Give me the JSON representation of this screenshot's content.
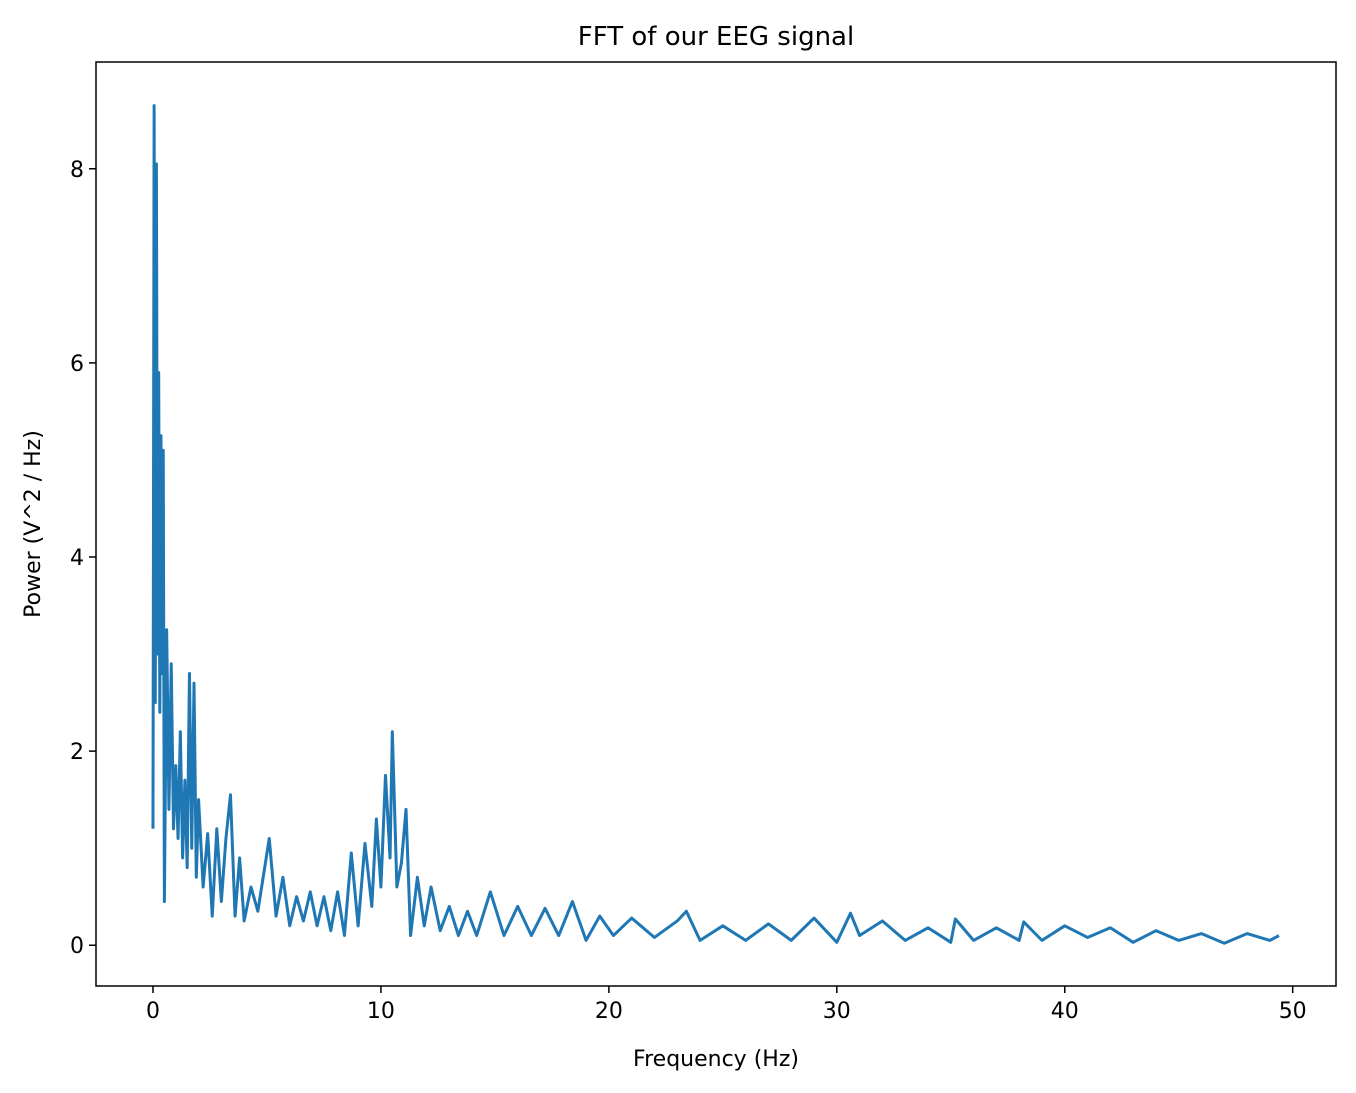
{
  "chart_data": {
    "type": "line",
    "title": "FFT of our EEG signal",
    "xlabel": "Frequency (Hz)",
    "ylabel": "Power (V^2 / Hz)",
    "x": [
      0,
      0.05,
      0.1,
      0.15,
      0.2,
      0.25,
      0.3,
      0.35,
      0.4,
      0.45,
      0.5,
      0.6,
      0.7,
      0.8,
      0.9,
      1.0,
      1.1,
      1.2,
      1.3,
      1.4,
      1.5,
      1.6,
      1.7,
      1.8,
      1.9,
      2.0,
      2.2,
      2.4,
      2.6,
      2.8,
      3.0,
      3.2,
      3.4,
      3.6,
      3.8,
      4.0,
      4.3,
      4.6,
      4.9,
      5.1,
      5.4,
      5.7,
      6.0,
      6.3,
      6.6,
      6.9,
      7.2,
      7.5,
      7.8,
      8.1,
      8.4,
      8.7,
      9.0,
      9.3,
      9.6,
      9.8,
      10.0,
      10.2,
      10.4,
      10.5,
      10.7,
      10.9,
      11.1,
      11.3,
      11.6,
      11.9,
      12.2,
      12.6,
      13.0,
      13.4,
      13.8,
      14.2,
      14.8,
      15.4,
      16.0,
      16.6,
      17.2,
      17.8,
      18.4,
      19.0,
      19.6,
      20.2,
      21,
      22,
      23,
      23.4,
      24,
      25,
      26,
      27,
      28,
      29,
      30,
      30.6,
      31,
      32,
      33,
      34,
      35,
      35.2,
      36,
      37,
      38,
      38.2,
      39,
      40,
      41,
      42,
      43,
      44,
      45,
      46,
      47,
      48,
      49,
      49.4
    ],
    "series": [
      {
        "name": "Power",
        "color": "#1f77b4",
        "values": [
          1.2,
          8.65,
          2.5,
          8.05,
          3.0,
          5.9,
          2.4,
          5.25,
          2.8,
          5.1,
          0.45,
          3.25,
          1.4,
          2.9,
          1.2,
          1.85,
          1.1,
          2.2,
          0.9,
          1.7,
          0.8,
          2.8,
          1.0,
          2.7,
          0.7,
          1.5,
          0.6,
          1.15,
          0.3,
          1.2,
          0.45,
          1.1,
          1.55,
          0.3,
          0.9,
          0.25,
          0.6,
          0.35,
          0.8,
          1.1,
          0.3,
          0.7,
          0.2,
          0.5,
          0.25,
          0.55,
          0.2,
          0.5,
          0.15,
          0.55,
          0.1,
          0.95,
          0.2,
          1.05,
          0.4,
          1.3,
          0.6,
          1.75,
          0.9,
          2.2,
          0.6,
          0.85,
          1.4,
          0.1,
          0.7,
          0.2,
          0.6,
          0.15,
          0.4,
          0.1,
          0.35,
          0.1,
          0.55,
          0.1,
          0.4,
          0.1,
          0.38,
          0.1,
          0.45,
          0.05,
          0.3,
          0.1,
          0.28,
          0.08,
          0.25,
          0.35,
          0.05,
          0.2,
          0.05,
          0.22,
          0.05,
          0.28,
          0.03,
          0.33,
          0.1,
          0.25,
          0.05,
          0.18,
          0.03,
          0.27,
          0.05,
          0.18,
          0.05,
          0.24,
          0.05,
          0.2,
          0.08,
          0.18,
          0.03,
          0.15,
          0.05,
          0.12,
          0.02,
          0.12,
          0.05,
          0.1
        ]
      }
    ],
    "xlim": [
      -2.5,
      51.9
    ],
    "ylim": [
      -0.42,
      9.1
    ],
    "xticks": [
      0,
      10,
      20,
      30,
      40,
      50
    ],
    "yticks": [
      0,
      2,
      4,
      6,
      8
    ]
  }
}
